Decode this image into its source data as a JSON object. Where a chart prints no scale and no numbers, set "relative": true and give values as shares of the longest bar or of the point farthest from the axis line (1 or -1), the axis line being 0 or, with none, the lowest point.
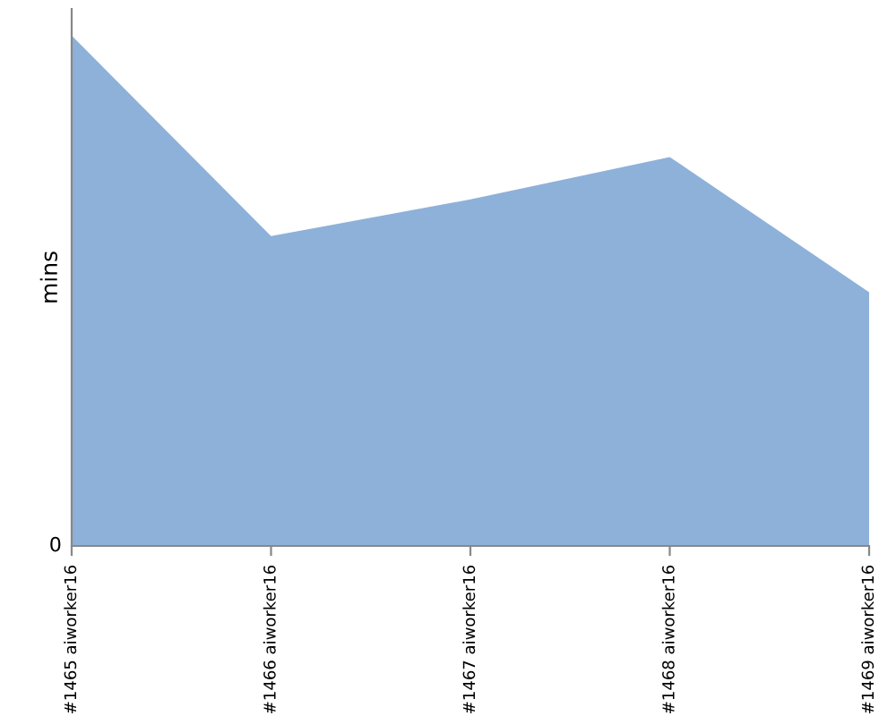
{
  "chart_data": {
    "type": "area",
    "ylabel": "mins",
    "relative": true,
    "annotations": [
      "0"
    ],
    "categories": [
      "#1465 aiworker16",
      "#1466 aiworker16",
      "#1467 aiworker16",
      "#1468 aiworker16",
      "#1469 aiworker16"
    ],
    "series": [
      {
        "color": "#8eb1d9",
        "values": [
          1,
          0.607,
          0.679,
          0.762,
          0.497
        ]
      }
    ]
  }
}
